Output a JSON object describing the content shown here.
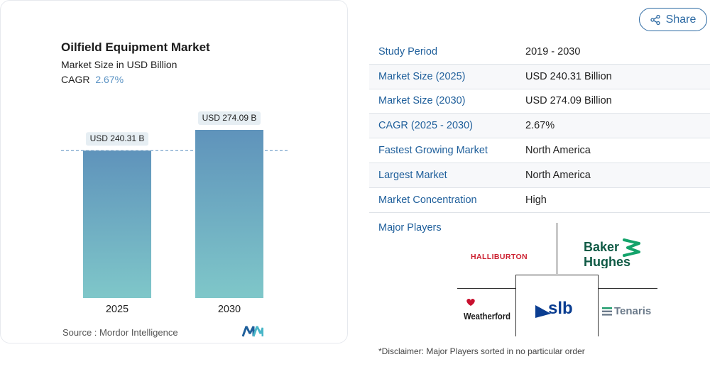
{
  "chart": {
    "title": "Oilfield Equipment Market",
    "subtitle": "Market Size in USD Billion",
    "cagr_label": "CAGR",
    "cagr_value": "2.67%",
    "source": "Source :  Mordor Intelligence"
  },
  "chart_data": {
    "type": "bar",
    "categories": [
      "2025",
      "2030"
    ],
    "values": [
      240.31,
      274.09
    ],
    "data_labels": [
      "USD 240.31 B",
      "USD 274.09 B"
    ],
    "title": "Oilfield Equipment Market",
    "subtitle": "Market Size in USD Billion",
    "xlabel": "",
    "ylabel": "",
    "reference_line": 240.31,
    "grid": false,
    "colors": {
      "bar_top": "#5f93bb",
      "bar_bottom": "#7fc7c9",
      "label_bg": "#e6eef3",
      "ref_line": "#5b8fc0"
    }
  },
  "share": {
    "label": "Share",
    "icon": "share-icon"
  },
  "stats": [
    {
      "label": "Study Period",
      "value": "2019 - 2030"
    },
    {
      "label": "Market Size (2025)",
      "value": "USD 240.31 Billion"
    },
    {
      "label": "Market Size (2030)",
      "value": "USD 274.09 Billion"
    },
    {
      "label": "CAGR (2025 - 2030)",
      "value": "2.67%"
    },
    {
      "label": "Fastest Growing Market",
      "value": "North America"
    },
    {
      "label": "Largest Market",
      "value": "North America"
    },
    {
      "label": "Market Concentration",
      "value": "High"
    }
  ],
  "players": {
    "label": "Major Players",
    "logos": [
      "HALLIBURTON",
      "Baker Hughes",
      "Weatherford",
      "slb",
      "Tenaris"
    ]
  },
  "disclaimer": "*Disclaimer: Major Players sorted in no particular order"
}
